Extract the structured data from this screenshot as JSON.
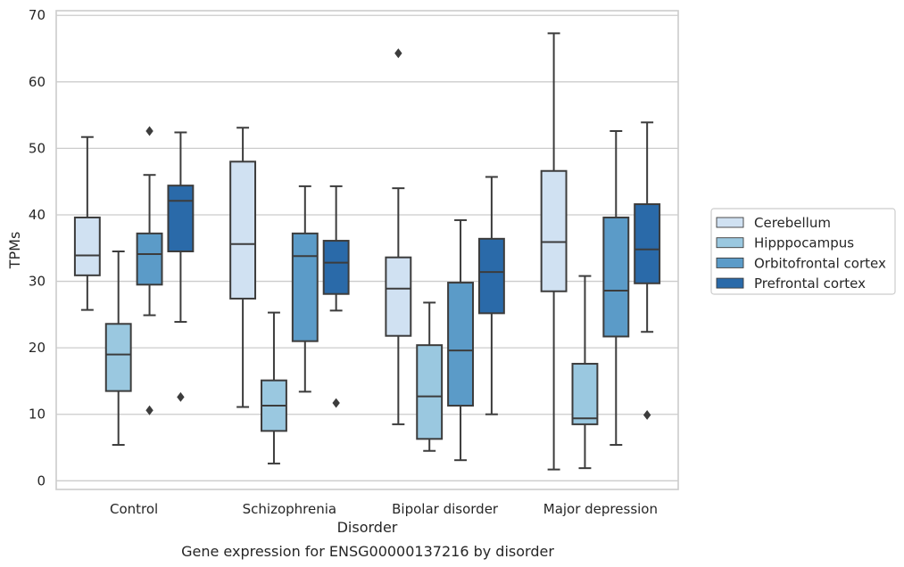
{
  "chart_data": {
    "type": "box",
    "title": "",
    "caption": "Gene expression for ENSG00000137216 by disorder",
    "xlabel": "Disorder",
    "ylabel": "TPMs",
    "ylim": [
      -1.3,
      70.7
    ],
    "yticks": [
      0,
      10,
      20,
      30,
      40,
      50,
      60,
      70
    ],
    "grid": "horizontal",
    "legend_position": "right",
    "categories": [
      "Control",
      "Schizophrenia",
      "Bipolar disorder",
      "Major depression"
    ],
    "series": [
      {
        "name": "Cerebellum",
        "color": "#d0e1f2",
        "boxes": [
          {
            "whislo": 25.7,
            "q1": 30.9,
            "med": 33.9,
            "q3": 39.6,
            "whishi": 51.7,
            "fliers": []
          },
          {
            "whislo": 11.1,
            "q1": 27.4,
            "med": 35.6,
            "q3": 48.0,
            "whishi": 53.1,
            "fliers": []
          },
          {
            "whislo": 8.5,
            "q1": 21.8,
            "med": 28.9,
            "q3": 33.6,
            "whishi": 44.0,
            "fliers": [
              64.3
            ]
          },
          {
            "whislo": 1.7,
            "q1": 28.5,
            "med": 35.9,
            "q3": 46.6,
            "whishi": 67.3,
            "fliers": []
          }
        ]
      },
      {
        "name": "Hipppocampus",
        "color": "#9ac8e0",
        "boxes": [
          {
            "whislo": 5.4,
            "q1": 13.5,
            "med": 19.0,
            "q3": 23.6,
            "whishi": 34.5,
            "fliers": []
          },
          {
            "whislo": 2.6,
            "q1": 7.5,
            "med": 11.3,
            "q3": 15.1,
            "whishi": 25.3,
            "fliers": []
          },
          {
            "whislo": 4.5,
            "q1": 6.3,
            "med": 12.7,
            "q3": 20.4,
            "whishi": 26.8,
            "fliers": []
          },
          {
            "whislo": 1.9,
            "q1": 8.5,
            "med": 9.4,
            "q3": 17.6,
            "whishi": 30.8,
            "fliers": []
          }
        ]
      },
      {
        "name": "Orbitofrontal cortex",
        "color": "#5b9bc8",
        "boxes": [
          {
            "whislo": 24.9,
            "q1": 29.5,
            "med": 34.1,
            "q3": 37.2,
            "whishi": 46.0,
            "fliers": [
              52.6,
              10.6
            ]
          },
          {
            "whislo": 13.4,
            "q1": 21.0,
            "med": 33.8,
            "q3": 37.2,
            "whishi": 44.3,
            "fliers": []
          },
          {
            "whislo": 3.1,
            "q1": 11.3,
            "med": 19.6,
            "q3": 29.8,
            "whishi": 39.2,
            "fliers": []
          },
          {
            "whislo": 5.4,
            "q1": 21.7,
            "med": 28.6,
            "q3": 39.6,
            "whishi": 52.6,
            "fliers": []
          }
        ]
      },
      {
        "name": "Prefrontal cortex",
        "color": "#2a6aa9",
        "boxes": [
          {
            "whislo": 23.9,
            "q1": 34.5,
            "med": 42.1,
            "q3": 44.4,
            "whishi": 52.4,
            "fliers": [
              12.6
            ]
          },
          {
            "whislo": 25.6,
            "q1": 28.1,
            "med": 32.8,
            "q3": 36.1,
            "whishi": 44.3,
            "fliers": [
              11.7
            ]
          },
          {
            "whislo": 10.0,
            "q1": 25.2,
            "med": 31.4,
            "q3": 36.4,
            "whishi": 45.7,
            "fliers": []
          },
          {
            "whislo": 22.4,
            "q1": 29.7,
            "med": 34.8,
            "q3": 41.6,
            "whishi": 53.9,
            "fliers": [
              9.9
            ]
          }
        ]
      }
    ]
  },
  "colors": {
    "axes_edge": "#cccccc",
    "grid": "#cccccc",
    "line": "#3c3c3c",
    "background": "#ffffff"
  }
}
